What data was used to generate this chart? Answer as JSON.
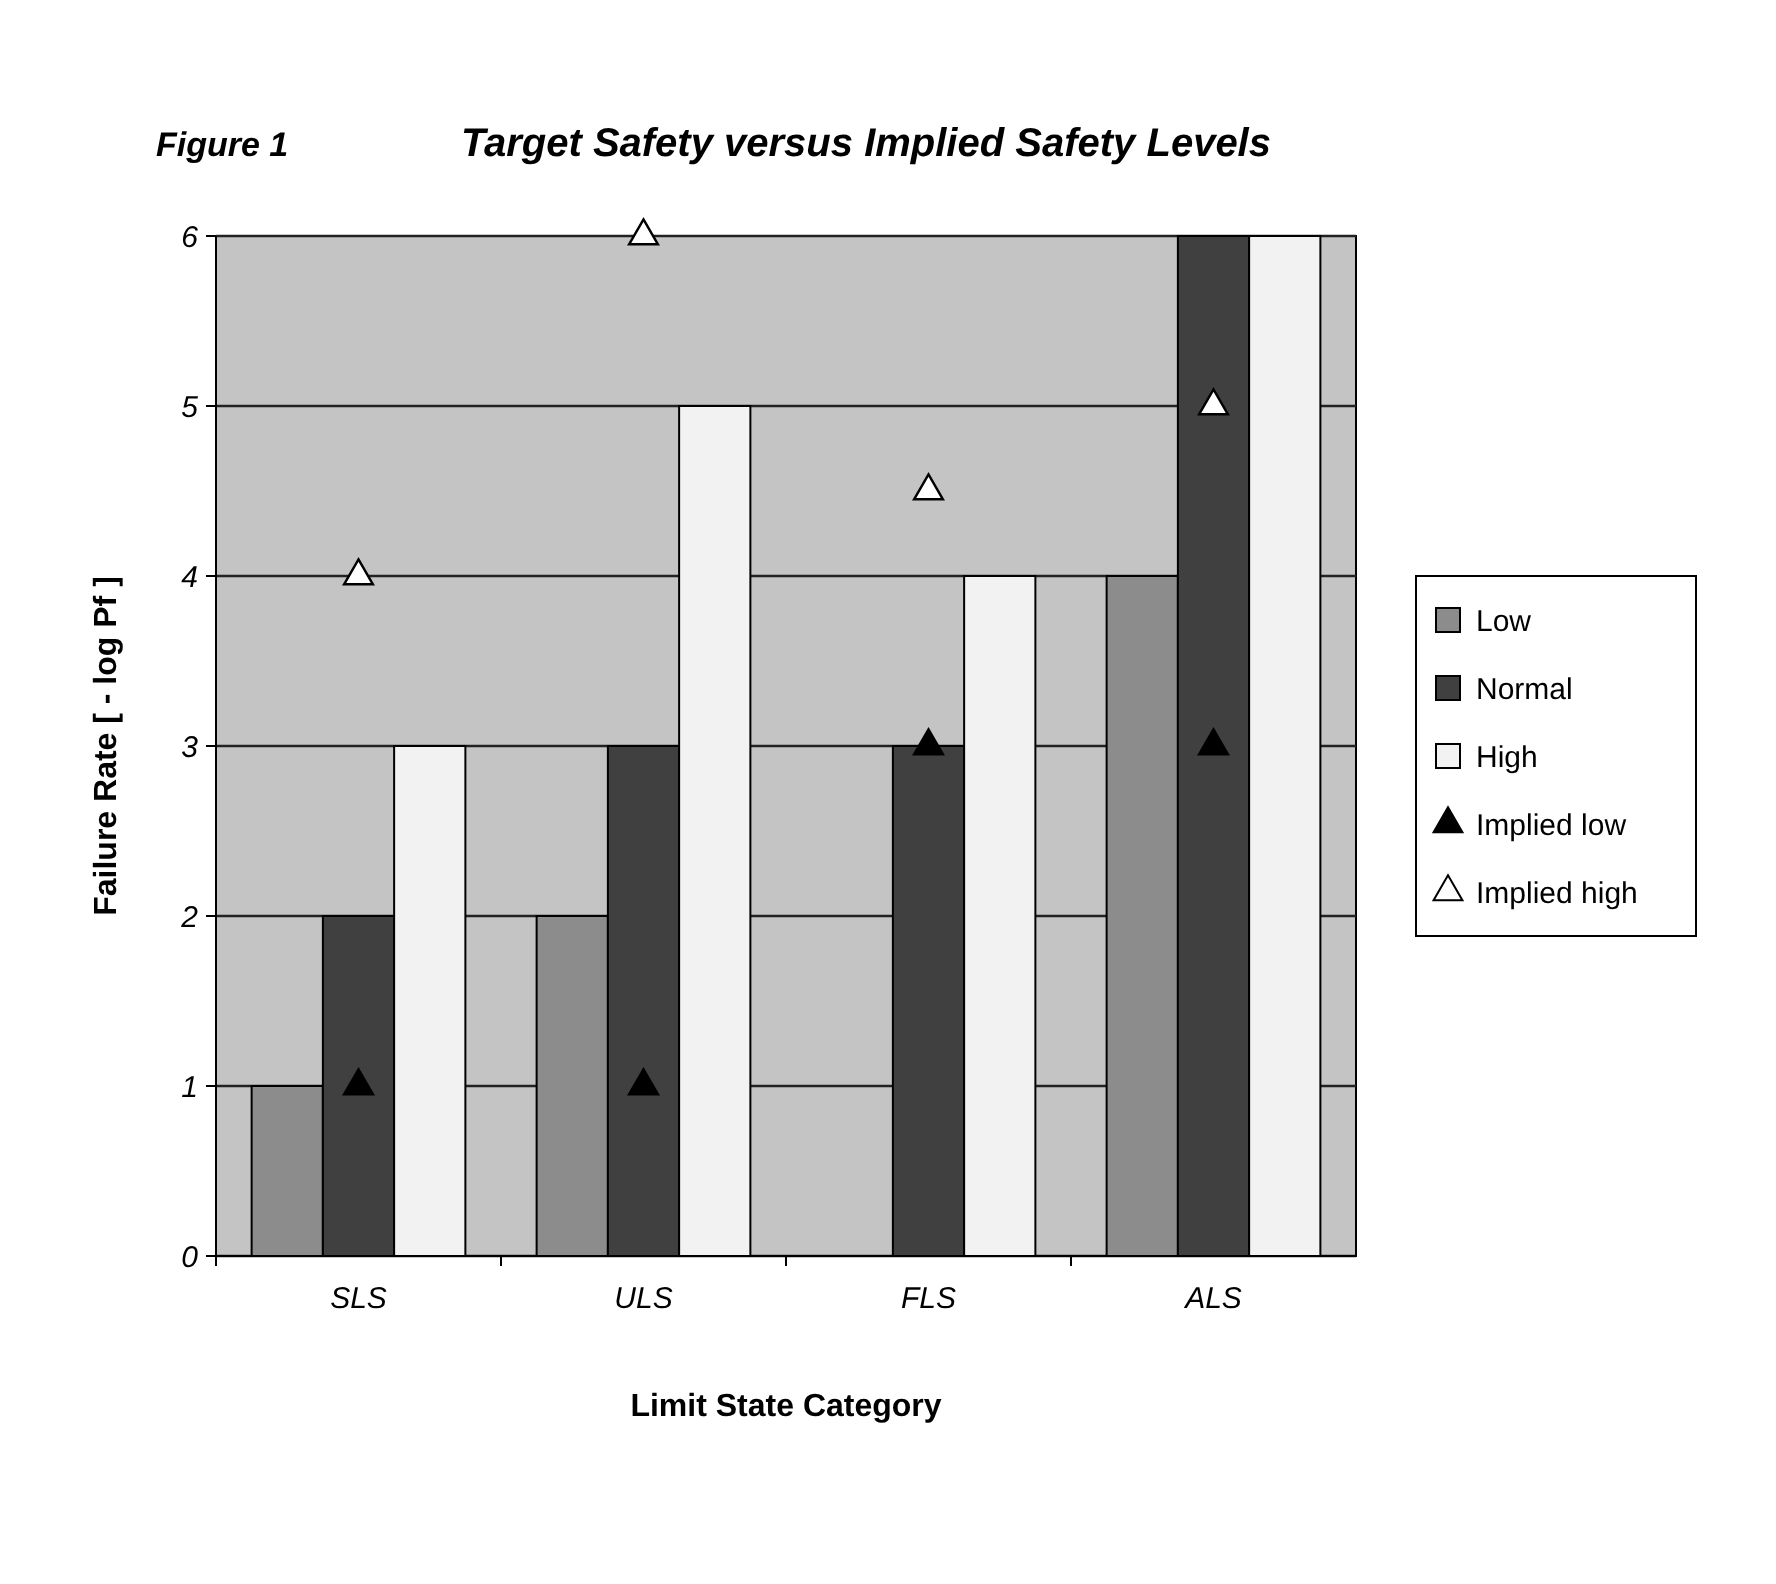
{
  "chart_data": {
    "type": "bar",
    "title": "Target Safety versus Implied Safety Levels",
    "annotations": [
      "Figure 1"
    ],
    "xlabel": "Limit State Category",
    "ylabel": "Failure Rate  [ - log Pf ]",
    "categories": [
      "SLS",
      "ULS",
      "FLS",
      "ALS"
    ],
    "series": [
      {
        "name": "Low",
        "color": "#8c8c8c",
        "values": [
          1,
          2,
          null,
          4
        ]
      },
      {
        "name": "Normal",
        "color": "#404040",
        "values": [
          2,
          3,
          3,
          6
        ]
      },
      {
        "name": "High",
        "color": "#f2f2f2",
        "values": [
          3,
          5,
          4,
          6
        ]
      },
      {
        "name": "Implied low",
        "type": "scatter",
        "marker": "triangle",
        "color": "#000000",
        "x": [
          "SLS",
          "ULS",
          "FLS",
          "ALS"
        ],
        "values": [
          1,
          1,
          3,
          3
        ]
      },
      {
        "name": "Implied high",
        "type": "scatter",
        "marker": "triangle",
        "color": "#ffffff",
        "x": [
          "SLS",
          "ULS",
          "FLS",
          "ALS"
        ],
        "values": [
          4,
          6,
          4.5,
          5
        ]
      }
    ],
    "ylim": [
      0,
      6
    ],
    "yticks": [
      0,
      1,
      2,
      3,
      4,
      5,
      6
    ],
    "grid": "y",
    "legend": "right"
  }
}
